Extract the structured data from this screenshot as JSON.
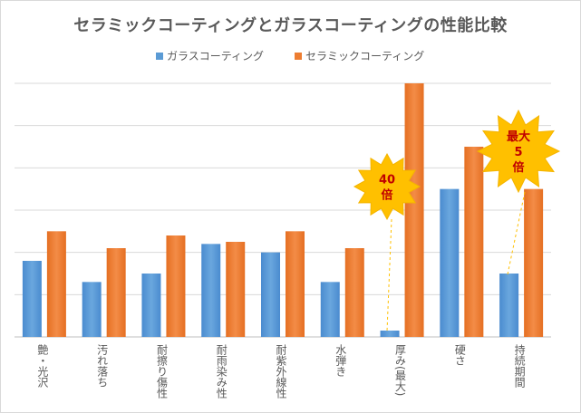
{
  "chart_data": {
    "type": "bar",
    "title": "セラミックコーティングとガラスコーティングの性能比較",
    "categories": [
      "艶・光沢",
      "汚れ落ち",
      "耐擦り傷性",
      "耐雨染み性",
      "耐紫外線性",
      "水弾き",
      "厚み(最大)",
      "硬さ",
      "持続期間"
    ],
    "series": [
      {
        "name": "ガラスコーティング",
        "color": "#5b9bd5",
        "values": [
          1.8,
          1.3,
          1.5,
          2.2,
          2.0,
          1.3,
          0.15,
          3.5,
          1.5
        ]
      },
      {
        "name": "セラミックコーティング",
        "color": "#ed7d31",
        "values": [
          2.5,
          2.1,
          2.4,
          2.25,
          2.5,
          2.1,
          6.0,
          4.5,
          3.5
        ]
      }
    ],
    "ylim": [
      0,
      6
    ],
    "grid": true,
    "legend": "top-center",
    "annotations": [
      {
        "text": "40\n倍",
        "category": "厚み(最大)",
        "shape": "starburst",
        "color": "#ffc000",
        "text_color": "#c00000"
      },
      {
        "text": "最大\n5\n倍",
        "category": "持続期間",
        "shape": "starburst",
        "color": "#ffc000",
        "text_color": "#c00000"
      }
    ]
  }
}
